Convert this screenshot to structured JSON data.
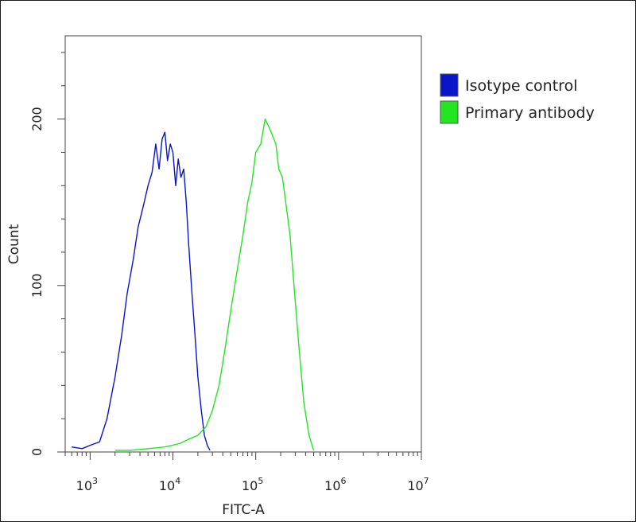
{
  "chart_data": {
    "type": "line",
    "title": "",
    "xlabel": "FITC-A",
    "ylabel": "Count",
    "x_scale": "log",
    "xlim": [
      500,
      10000000
    ],
    "ylim": [
      0,
      250
    ],
    "grid": false,
    "legend_position": "top-right",
    "x_ticks": [
      {
        "value": 1000,
        "base": "10",
        "exp": "3"
      },
      {
        "value": 10000,
        "base": "10",
        "exp": "4"
      },
      {
        "value": 100000,
        "base": "10",
        "exp": "5"
      },
      {
        "value": 1000000,
        "base": "10",
        "exp": "6"
      },
      {
        "value": 10000000,
        "base": "10",
        "exp": "7"
      }
    ],
    "y_ticks": [
      {
        "value": 0,
        "label": "0"
      },
      {
        "value": 100,
        "label": "100"
      },
      {
        "value": 200,
        "label": "200"
      }
    ],
    "series": [
      {
        "name": "Isotype control",
        "color": "#0a14c8",
        "x": [
          600,
          800,
          1000,
          1300,
          1600,
          2000,
          2400,
          2800,
          3300,
          3800,
          4400,
          5000,
          5600,
          6200,
          6800,
          7400,
          8000,
          8600,
          9300,
          10000,
          10800,
          11600,
          12500,
          13500,
          14500,
          15500,
          17000,
          18500,
          20000,
          22000,
          24000,
          26000,
          28000
        ],
        "y": [
          3,
          2,
          4,
          6,
          20,
          45,
          70,
          95,
          115,
          135,
          148,
          160,
          168,
          185,
          170,
          188,
          192,
          175,
          185,
          180,
          160,
          176,
          165,
          170,
          150,
          125,
          95,
          70,
          45,
          25,
          10,
          4,
          1
        ]
      },
      {
        "name": "Primary antibody",
        "color": "#22e622",
        "x": [
          2000,
          3000,
          5000,
          8000,
          12000,
          16000,
          20000,
          25000,
          30000,
          36000,
          42000,
          50000,
          60000,
          70000,
          80000,
          90000,
          100000,
          115000,
          130000,
          145000,
          160000,
          175000,
          190000,
          210000,
          230000,
          260000,
          290000,
          330000,
          380000,
          440000,
          500000
        ],
        "y": [
          1,
          1,
          2,
          3,
          5,
          8,
          10,
          15,
          25,
          40,
          60,
          85,
          110,
          130,
          150,
          162,
          180,
          185,
          200,
          195,
          190,
          185,
          170,
          165,
          150,
          130,
          100,
          65,
          30,
          10,
          1
        ]
      }
    ]
  }
}
